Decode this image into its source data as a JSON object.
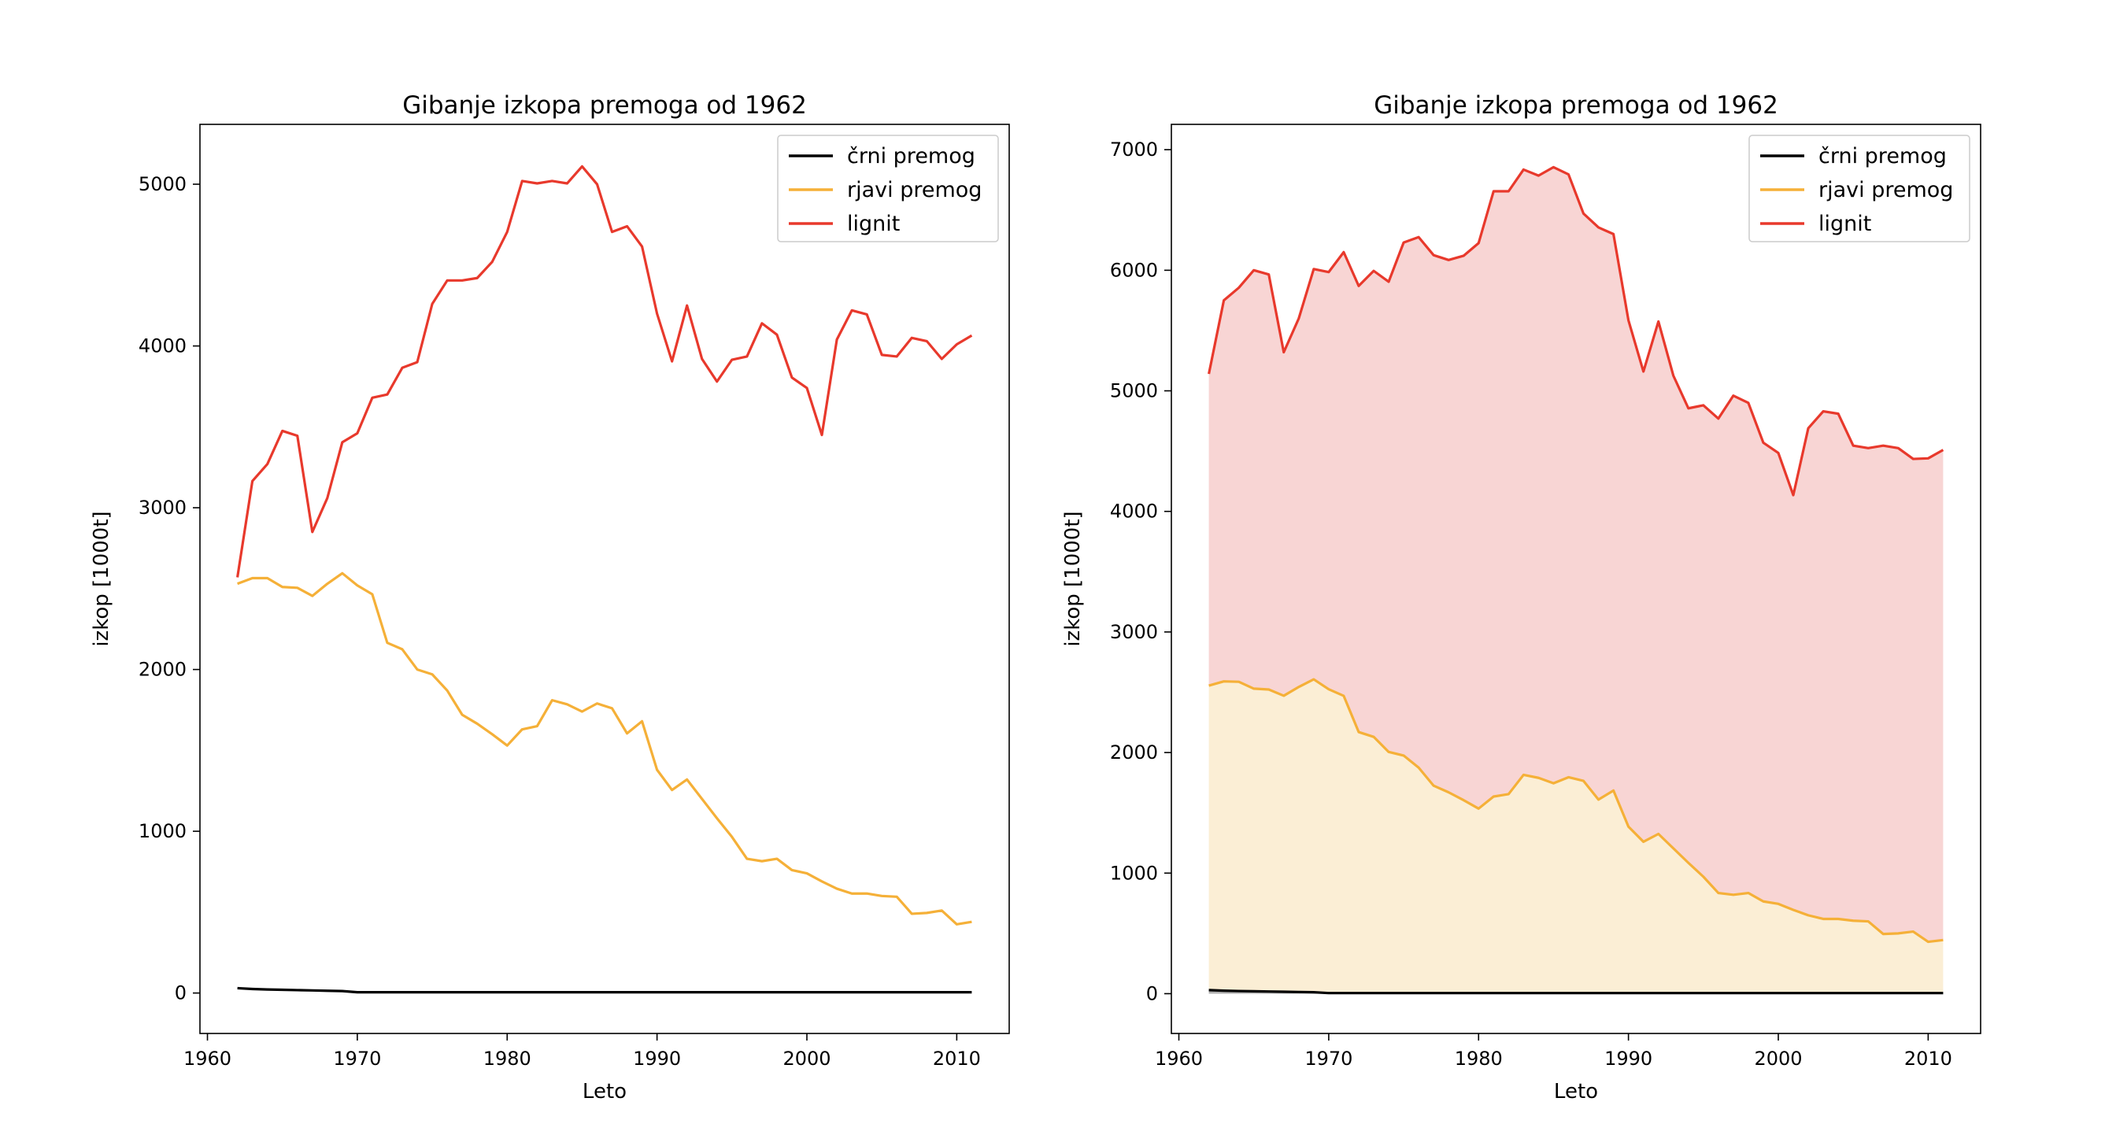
{
  "chart_data": [
    {
      "type": "line",
      "title": "Gibanje izkopa premoga od 1962",
      "xlabel": "Leto",
      "ylabel": "izkop [1000t]",
      "xlim": [
        1959.5,
        2013.5
      ],
      "ylim": [
        -250,
        5370
      ],
      "xticks": [
        1960,
        1970,
        1980,
        1990,
        2000,
        2010
      ],
      "yticks": [
        0,
        1000,
        2000,
        3000,
        4000,
        5000
      ],
      "grid": false,
      "legend": "top-right",
      "stacked": false,
      "x": [
        1962,
        1963,
        1964,
        1965,
        1966,
        1967,
        1968,
        1969,
        1970,
        1971,
        1972,
        1973,
        1974,
        1975,
        1976,
        1977,
        1978,
        1979,
        1980,
        1981,
        1982,
        1983,
        1984,
        1985,
        1986,
        1987,
        1988,
        1989,
        1990,
        1991,
        1992,
        1993,
        1994,
        1995,
        1996,
        1997,
        1998,
        1999,
        2000,
        2001,
        2002,
        2003,
        2004,
        2005,
        2006,
        2007,
        2008,
        2009,
        2010,
        2011
      ],
      "series": [
        {
          "name": "črni premog",
          "color": "#000000",
          "values": [
            30,
            25,
            22,
            20,
            18,
            16,
            14,
            12,
            5,
            5,
            5,
            5,
            5,
            5,
            5,
            5,
            5,
            5,
            5,
            5,
            5,
            5,
            5,
            5,
            5,
            5,
            5,
            5,
            5,
            5,
            5,
            5,
            5,
            5,
            5,
            5,
            5,
            5,
            5,
            5,
            5,
            5,
            5,
            5,
            5,
            5,
            5,
            5,
            5,
            5
          ]
        },
        {
          "name": "rjavi premog",
          "color": "#f5b038",
          "values": [
            2530,
            2565,
            2565,
            2510,
            2505,
            2455,
            2530,
            2595,
            2520,
            2465,
            2165,
            2125,
            2000,
            1970,
            1870,
            1720,
            1665,
            1600,
            1530,
            1630,
            1650,
            1810,
            1785,
            1740,
            1790,
            1760,
            1605,
            1680,
            1380,
            1255,
            1320,
            1200,
            1080,
            965,
            830,
            815,
            830,
            760,
            740,
            690,
            645,
            615,
            615,
            600,
            595,
            490,
            495,
            510,
            425,
            440
          ]
        },
        {
          "name": "lignit",
          "color": "#e8392c",
          "values": [
            2570,
            3165,
            3270,
            3475,
            3445,
            2850,
            3060,
            3405,
            3460,
            3680,
            3700,
            3865,
            3900,
            4260,
            4405,
            4405,
            4420,
            4520,
            4705,
            5020,
            5005,
            5020,
            5005,
            5110,
            5000,
            4705,
            4740,
            4615,
            4200,
            3905,
            4250,
            3920,
            3780,
            3915,
            3935,
            4140,
            4070,
            3805,
            3740,
            3450,
            4040,
            4220,
            4195,
            3945,
            3935,
            4050,
            4030,
            3920,
            4010,
            4065
          ]
        }
      ]
    },
    {
      "type": "area",
      "title": "Gibanje izkopa premoga od 1962",
      "xlabel": "Leto",
      "ylabel": "izkop [1000t]",
      "xlim": [
        1959.5,
        2013.5
      ],
      "ylim": [
        -330,
        7210
      ],
      "xticks": [
        1960,
        1970,
        1980,
        1990,
        2000,
        2010
      ],
      "yticks": [
        0,
        1000,
        2000,
        3000,
        4000,
        5000,
        6000,
        7000
      ],
      "grid": false,
      "legend": "top-right",
      "stacked": true,
      "x": [
        1962,
        1963,
        1964,
        1965,
        1966,
        1967,
        1968,
        1969,
        1970,
        1971,
        1972,
        1973,
        1974,
        1975,
        1976,
        1977,
        1978,
        1979,
        1980,
        1981,
        1982,
        1983,
        1984,
        1985,
        1986,
        1987,
        1988,
        1989,
        1990,
        1991,
        1992,
        1993,
        1994,
        1995,
        1996,
        1997,
        1998,
        1999,
        2000,
        2001,
        2002,
        2003,
        2004,
        2005,
        2006,
        2007,
        2008,
        2009,
        2010,
        2011
      ],
      "series": [
        {
          "name": "črni premog",
          "color": "#000000",
          "fill": "#b0b0b0",
          "values": [
            30,
            25,
            22,
            20,
            18,
            16,
            14,
            12,
            5,
            5,
            5,
            5,
            5,
            5,
            5,
            5,
            5,
            5,
            5,
            5,
            5,
            5,
            5,
            5,
            5,
            5,
            5,
            5,
            5,
            5,
            5,
            5,
            5,
            5,
            5,
            5,
            5,
            5,
            5,
            5,
            5,
            5,
            5,
            5,
            5,
            5,
            5,
            5,
            5,
            5
          ]
        },
        {
          "name": "rjavi premog",
          "color": "#f5b038",
          "fill": "#fbeed5",
          "values": [
            2555,
            2590,
            2587,
            2530,
            2523,
            2471,
            2544,
            2607,
            2525,
            2470,
            2170,
            2130,
            2005,
            1975,
            1875,
            1725,
            1670,
            1605,
            1535,
            1635,
            1655,
            1815,
            1790,
            1745,
            1795,
            1765,
            1610,
            1685,
            1385,
            1260,
            1325,
            1205,
            1085,
            970,
            835,
            820,
            835,
            765,
            745,
            695,
            650,
            620,
            620,
            605,
            600,
            495,
            500,
            515,
            430,
            445
          ]
        },
        {
          "name": "lignit",
          "color": "#e8392c",
          "fill": "#f8d5d4",
          "values": [
            5140,
            5750,
            5855,
            6000,
            5965,
            5320,
            5600,
            6010,
            5985,
            6150,
            5870,
            5995,
            5905,
            6230,
            6275,
            6125,
            6085,
            6120,
            6225,
            6655,
            6655,
            6835,
            6785,
            6855,
            6795,
            6470,
            6355,
            6300,
            5585,
            5160,
            5575,
            5125,
            4855,
            4880,
            4770,
            4960,
            4900,
            4570,
            4485,
            4135,
            4690,
            4830,
            4810,
            4545,
            4525,
            4545,
            4525,
            4435,
            4440,
            4510
          ]
        }
      ]
    }
  ]
}
